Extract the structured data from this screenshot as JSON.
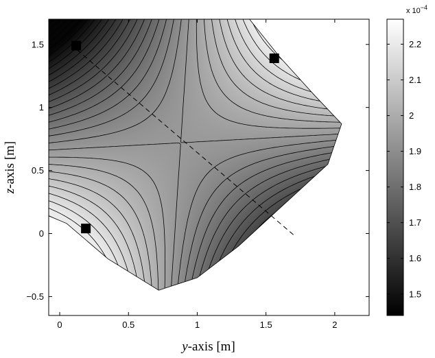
{
  "chart_data": {
    "type": "contour",
    "title": "",
    "xlabel_var": "y",
    "xlabel_rest": "-axis [m]",
    "ylabel_var": "z",
    "ylabel_rest": "-axis [m]",
    "xlim": [
      -0.08,
      2.25
    ],
    "ylim": [
      -0.65,
      1.7
    ],
    "xticks": [
      0,
      0.5,
      1,
      1.5,
      2
    ],
    "xtick_labels": [
      "0",
      "0.5",
      "1",
      "1.5",
      "2"
    ],
    "yticks": [
      -0.5,
      0,
      0.5,
      1,
      1.5
    ],
    "ytick_labels": [
      "−0.5",
      "0",
      "0.5",
      "1",
      "1.5"
    ],
    "region_boundary": [
      [
        -0.08,
        1.7
      ],
      [
        1.38,
        1.7
      ],
      [
        1.6,
        1.4
      ],
      [
        1.85,
        1.1
      ],
      [
        2.05,
        0.87
      ],
      [
        1.95,
        0.55
      ],
      [
        1.65,
        0.25
      ],
      [
        1.3,
        -0.1
      ],
      [
        1.0,
        -0.35
      ],
      [
        0.72,
        -0.45
      ],
      [
        0.35,
        -0.2
      ],
      [
        0.05,
        0.08
      ],
      [
        -0.08,
        0.14
      ]
    ],
    "saddle": [
      0.88,
      0.72
    ],
    "markers": [
      {
        "y": 0.12,
        "z": 1.49
      },
      {
        "y": 1.56,
        "z": 1.39
      },
      {
        "y": 0.19,
        "z": 0.04
      }
    ],
    "dashed_line": {
      "from": [
        0.08,
        1.5
      ],
      "to": [
        1.7,
        -0.01
      ]
    },
    "colorbar": {
      "exponent_label": "x 10",
      "exponent_power": "−4",
      "range": [
        1.44,
        2.27
      ],
      "ticks": [
        1.5,
        1.6,
        1.7,
        1.8,
        1.9,
        2,
        2.1,
        2.2
      ],
      "tick_labels": [
        "1.5",
        "1.6",
        "1.7",
        "1.8",
        "1.9",
        "2",
        "2.1",
        "2.2"
      ],
      "colormap": "gray"
    }
  }
}
